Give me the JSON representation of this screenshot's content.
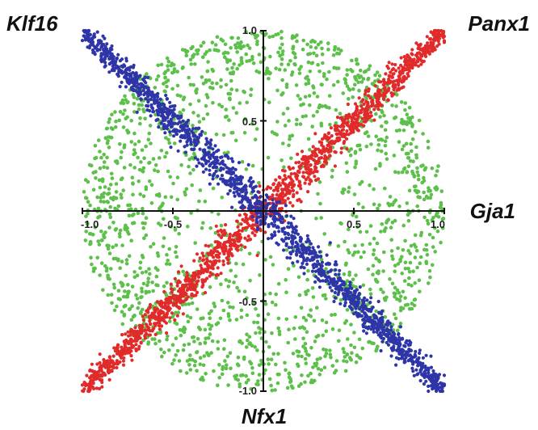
{
  "chart_data": {
    "type": "scatter",
    "title": "",
    "xlabel": "Gja1",
    "ylabel": "Nfx1",
    "xlim": [
      -1.0,
      1.0
    ],
    "ylim": [
      -1.0,
      1.0
    ],
    "grid": false,
    "legend": "none",
    "x_tick_labels": [
      "-1.0",
      "-0.5",
      "0.5",
      "1.0"
    ],
    "y_tick_labels": [
      "1.0",
      "0.5",
      "-0.5",
      "-1.0"
    ],
    "corner_labels": {
      "top_left": "Klf16",
      "top_right": "Panx1",
      "right": "Gja1",
      "bottom": "Nfx1"
    },
    "series": [
      {
        "color": "#5cc04a",
        "shape": "filled unit disk",
        "center": [
          0,
          0
        ],
        "radius": 1.0,
        "point_count": 1800
      },
      {
        "color": "#e12a2a",
        "shape": "band along y = x",
        "from": [
          -1.0,
          -1.0
        ],
        "to": [
          1.0,
          1.0
        ],
        "point_count": 1500
      },
      {
        "color": "#2e35a8",
        "shape": "band along y = -x",
        "from": [
          -1.0,
          1.0
        ],
        "to": [
          1.0,
          -1.0
        ],
        "point_count": 1500
      }
    ]
  }
}
